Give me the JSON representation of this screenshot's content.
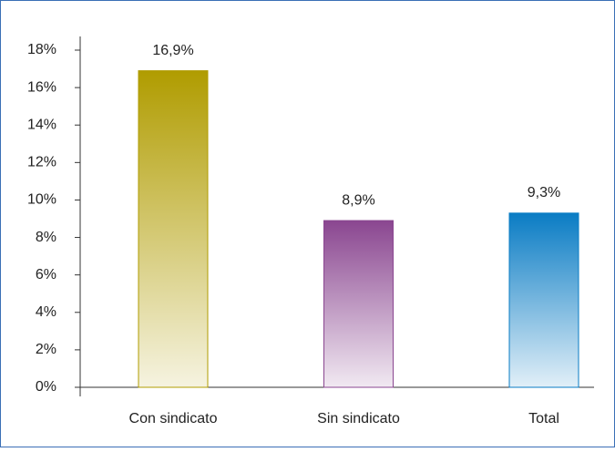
{
  "chart_data": {
    "type": "bar",
    "categories": [
      "Con sindicato",
      "Sin sindicato",
      "Total"
    ],
    "values": [
      16.9,
      8.9,
      9.3
    ],
    "value_labels": [
      "16,9%",
      "8,9%",
      "9,3%"
    ],
    "colors": [
      "#b09c00",
      "#8a4690",
      "#0a7cc4"
    ],
    "ylim": [
      0,
      18
    ],
    "yticks": [
      {
        "value": 0,
        "label": "0%"
      },
      {
        "value": 2,
        "label": "2%"
      },
      {
        "value": 4,
        "label": "4%"
      },
      {
        "value": 6,
        "label": "6%"
      },
      {
        "value": 8,
        "label": "8%"
      },
      {
        "value": 10,
        "label": "10%"
      },
      {
        "value": 12,
        "label": "12%"
      },
      {
        "value": 14,
        "label": "14%"
      },
      {
        "value": 16,
        "label": "16%"
      },
      {
        "value": 18,
        "label": "18%"
      }
    ],
    "grid": false
  }
}
